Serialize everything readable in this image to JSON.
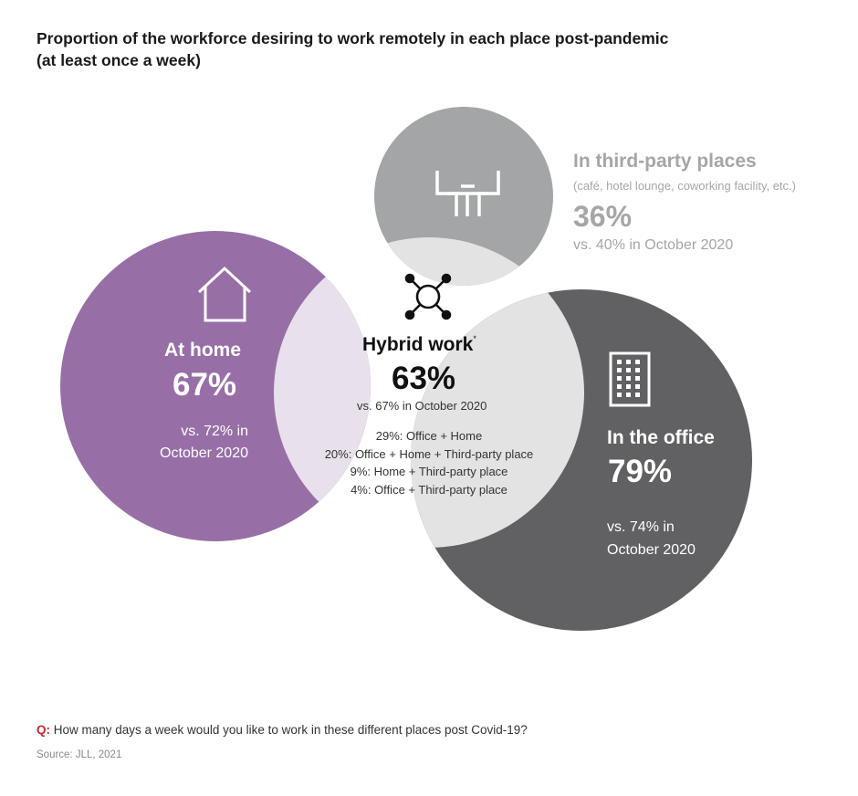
{
  "title": {
    "line1": "Proportion of the workforce desiring to work remotely in each place post-pandemic",
    "line2": "(at least once a week)"
  },
  "colors": {
    "home": "#976fa6",
    "office": "#616164",
    "third_party": "#a3a5a7",
    "overlap": "#e3e3e4",
    "home_overlap": "#e8e0eb",
    "accent_q": "#c0292f"
  },
  "icons": {
    "home": "house-icon",
    "third_party": "cafe-table-icon",
    "hybrid": "network-nodes-icon",
    "office": "office-building-icon"
  },
  "home": {
    "title": "At home",
    "percent": "67%",
    "vs_line1": "vs. 72% in",
    "vs_line2": "October 2020"
  },
  "hybrid": {
    "title": "Hybrid work",
    "footnote_mark": "*",
    "percent": "63%",
    "vs": "vs. 67% in October 2020",
    "breakdown": [
      "29%: Office + Home",
      "20%: Office + Home + Third-party place",
      "9%: Home + Third-party place",
      "4%: Office + Third-party place"
    ]
  },
  "office": {
    "title": "In the office",
    "percent": "79%",
    "vs_line1": "vs. 74% in",
    "vs_line2": "October 2020"
  },
  "third_party": {
    "title": "In third-party places",
    "subtitle": "(café, hotel lounge, coworking facility, etc.)",
    "percent": "36%",
    "vs": "vs. 40% in October 2020"
  },
  "question": {
    "prefix": "Q:",
    "text": " How many days a week would you like to work in these different places post Covid-19?"
  },
  "source": "Source: JLL, 2021"
}
